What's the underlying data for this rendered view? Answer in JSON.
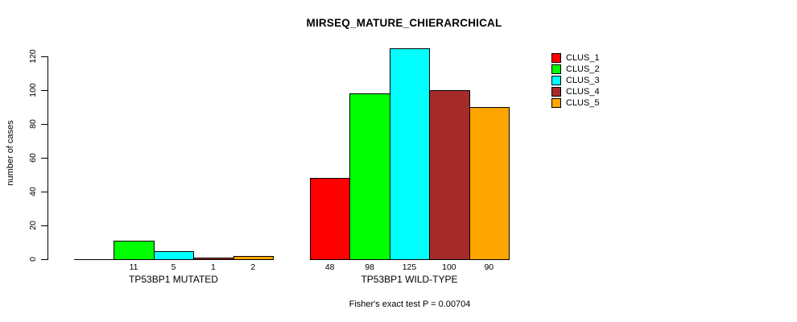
{
  "chart_data": {
    "type": "bar",
    "title": "MIRSEQ_MATURE_CHIERARCHICAL",
    "xlabel": "",
    "ylabel": "number of cases",
    "caption": "Fisher's exact test P = 0.00704",
    "ylim": [
      0,
      125
    ],
    "yticks": [
      0,
      20,
      40,
      60,
      80,
      100,
      120
    ],
    "grid": false,
    "legend_position": "top-right",
    "categories": [
      "TP53BP1 MUTATED",
      "TP53BP1 WILD-TYPE"
    ],
    "series": [
      {
        "name": "CLUS_1",
        "color": "#FF0000",
        "values": [
          0,
          48
        ],
        "value_labels": [
          "",
          "48"
        ]
      },
      {
        "name": "CLUS_2",
        "color": "#00FF00",
        "values": [
          11,
          98
        ],
        "value_labels": [
          "11",
          "98"
        ]
      },
      {
        "name": "CLUS_3",
        "color": "#00FFFF",
        "values": [
          5,
          125
        ],
        "value_labels": [
          "5",
          "125"
        ]
      },
      {
        "name": "CLUS_4",
        "color": "#A52A2A",
        "values": [
          1,
          100
        ],
        "value_labels": [
          "1",
          "100"
        ]
      },
      {
        "name": "CLUS_5",
        "color": "#FFA500",
        "values": [
          2,
          90
        ],
        "value_labels": [
          "2",
          "90"
        ]
      }
    ]
  }
}
